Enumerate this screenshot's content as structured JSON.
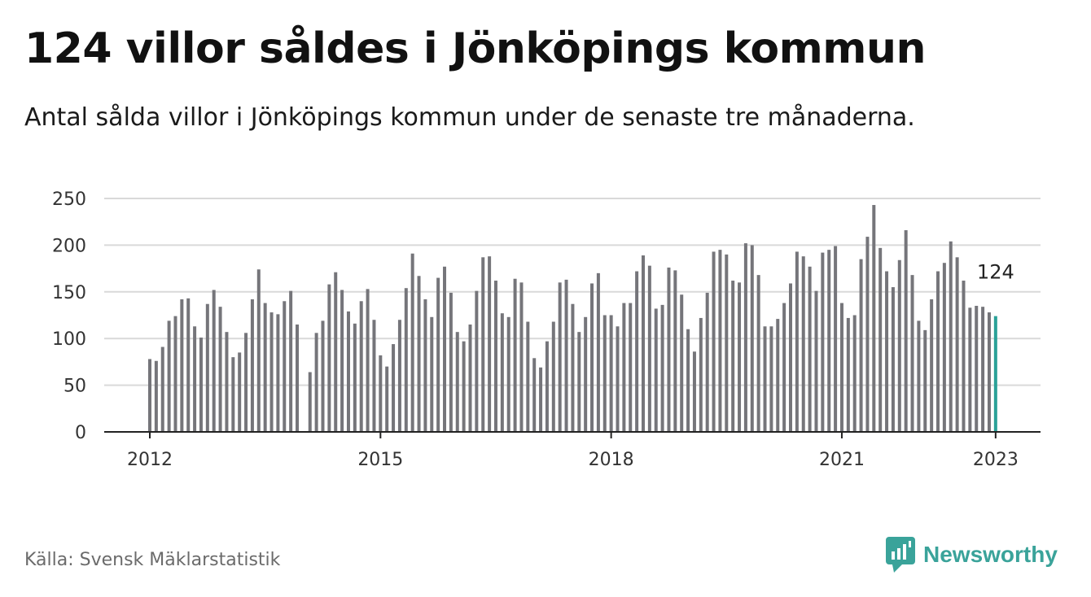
{
  "title": "124 villor såldes i Jönköpings kommun",
  "subtitle": "Antal sålda villor i Jönköpings kommun under de senaste tre månaderna.",
  "source": "Källa: Svensk Mäklarstatistik",
  "brand": "Newsworthy",
  "colors": {
    "bar": "#75757a",
    "highlight": "#2aa198",
    "grid": "#d9d9d9",
    "axis": "#222222",
    "brand": "#3aa39a"
  },
  "chart_data": {
    "type": "bar",
    "ylim": [
      0,
      250
    ],
    "yticks": [
      "0",
      "50",
      "100",
      "150",
      "200",
      "250"
    ],
    "xticks": [
      "2012",
      "2015",
      "2018",
      "2021",
      "2023"
    ],
    "x_start": "2012-01",
    "x_end": "2023-01",
    "grid": true,
    "highlight_label": "124",
    "values": [
      78,
      76,
      91,
      119,
      124,
      142,
      143,
      113,
      101,
      137,
      152,
      134,
      107,
      80,
      85,
      106,
      142,
      174,
      138,
      128,
      126,
      140,
      151,
      115,
      null,
      64,
      106,
      119,
      158,
      171,
      152,
      129,
      116,
      140,
      153,
      120,
      82,
      70,
      94,
      120,
      154,
      191,
      167,
      142,
      123,
      165,
      177,
      149,
      107,
      97,
      115,
      151,
      187,
      188,
      162,
      127,
      123,
      164,
      160,
      118,
      79,
      69,
      97,
      118,
      160,
      163,
      137,
      107,
      123,
      159,
      170,
      125,
      125,
      113,
      138,
      138,
      172,
      189,
      178,
      132,
      136,
      176,
      173,
      147,
      110,
      86,
      122,
      149,
      193,
      195,
      190,
      162,
      160,
      202,
      200,
      168,
      113,
      113,
      121,
      138,
      159,
      193,
      188,
      177,
      151,
      192,
      195,
      199,
      138,
      122,
      125,
      185,
      209,
      243,
      197,
      172,
      155,
      184,
      216,
      168,
      119,
      109,
      142,
      172,
      181,
      204,
      187,
      162,
      133,
      135,
      134,
      128,
      124
    ]
  }
}
